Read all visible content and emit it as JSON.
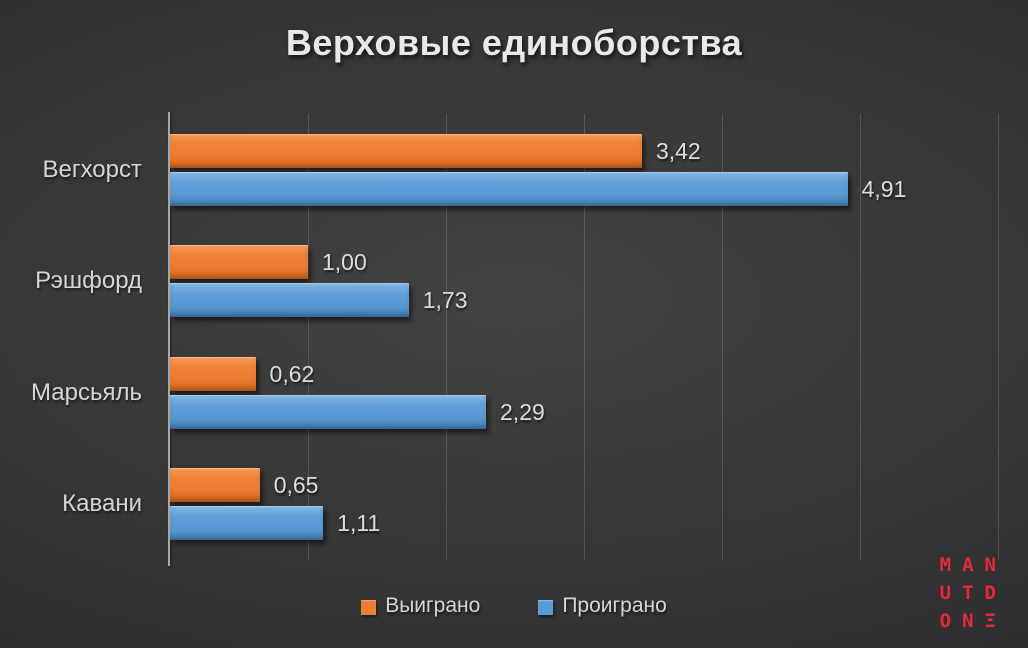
{
  "slide": {
    "background_center": "#434343",
    "background_edge": "#262626"
  },
  "title": "Верховые единоборства",
  "chart_data": {
    "type": "bar",
    "orientation": "horizontal",
    "title": "Верховые единоборства",
    "categories": [
      "Вегхорст",
      "Рэшфорд",
      "Марсьяль",
      "Кавани"
    ],
    "series": [
      {
        "name": "Выиграно",
        "color": "#ed7d31",
        "values": [
          3.42,
          1.0,
          0.62,
          0.65
        ],
        "labels": [
          "3,42",
          "1,00",
          "0,62",
          "0,65"
        ]
      },
      {
        "name": "Проиграно",
        "color": "#5b9bd5",
        "values": [
          4.91,
          1.73,
          2.29,
          1.11
        ],
        "labels": [
          "4,91",
          "1,73",
          "2,29",
          "1,11"
        ]
      }
    ],
    "xlim": [
      0,
      6
    ],
    "x_major_unit": 1,
    "x_axis_labels_visible": false,
    "gridlines": "vertical-major",
    "value_labels": "outside-end",
    "legend_position": "bottom"
  },
  "legend": {
    "items": [
      {
        "label": "Выиграно",
        "color": "#ed7d31"
      },
      {
        "label": "Проиграно",
        "color": "#5b9bd5"
      }
    ]
  },
  "watermark": {
    "text": "MAN UTD ONE",
    "display_lines": [
      "MAN",
      "UTD",
      "ONΞ"
    ],
    "color": "#e5293b"
  }
}
